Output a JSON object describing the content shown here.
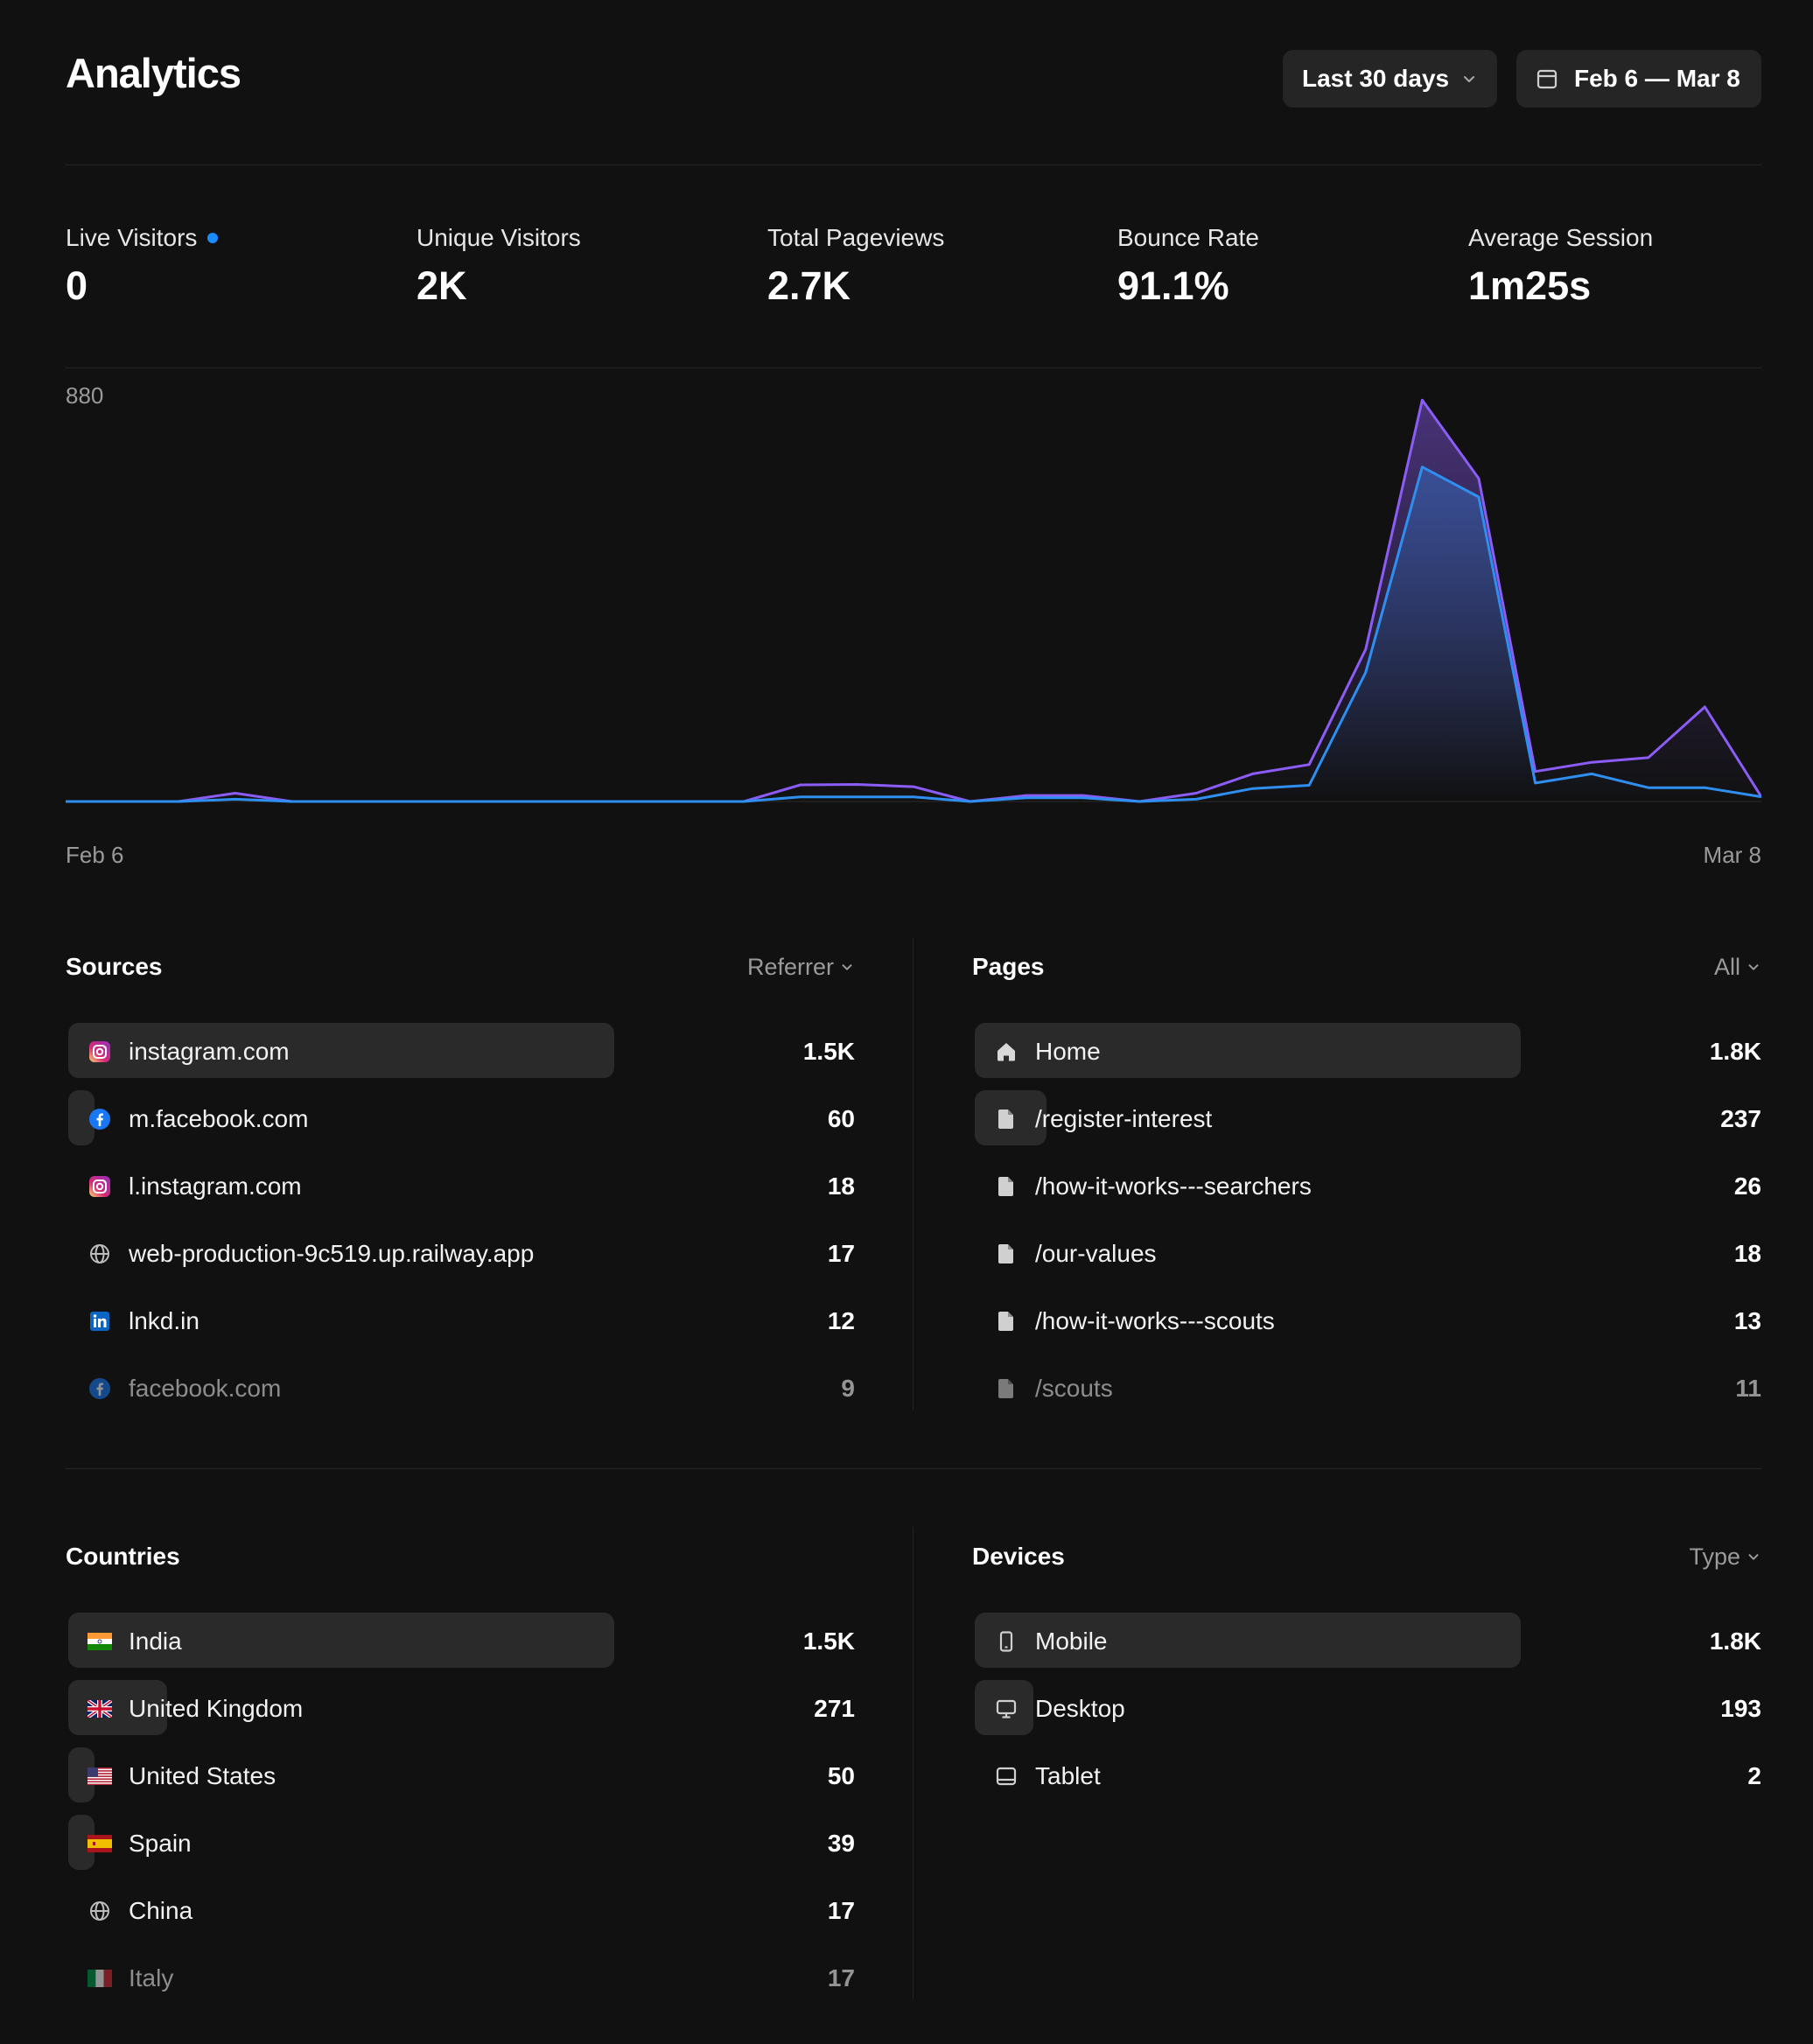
{
  "header": {
    "title": "Analytics",
    "range_label": "Last 30 days",
    "date_label": "Feb 6 — Mar 8"
  },
  "kpis": [
    {
      "label": "Live Visitors",
      "value": "0"
    },
    {
      "label": "Unique Visitors",
      "value": "2K"
    },
    {
      "label": "Total Pageviews",
      "value": "2.7K"
    },
    {
      "label": "Bounce Rate",
      "value": "91.1%"
    },
    {
      "label": "Average Session",
      "value": "1m25s"
    }
  ],
  "colors": {
    "accent_blue": "#1a8cff",
    "pageviews_line": "#8b5cf6",
    "visitors_line": "#2f8ff0",
    "background": "#111111"
  },
  "chart_data": {
    "type": "area",
    "ymax_label": "880",
    "ylim": [
      0,
      880
    ],
    "x_start_label": "Feb 6",
    "x_end_label": "Mar 8",
    "x": [
      "Feb 6",
      "Feb 7",
      "Feb 8",
      "Feb 9",
      "Feb 10",
      "Feb 11",
      "Feb 12",
      "Feb 13",
      "Feb 14",
      "Feb 15",
      "Feb 16",
      "Feb 17",
      "Feb 18",
      "Feb 19",
      "Feb 20",
      "Feb 21",
      "Feb 22",
      "Feb 23",
      "Feb 24",
      "Feb 25",
      "Feb 26",
      "Feb 27",
      "Feb 28",
      "Mar 1",
      "Mar 2",
      "Mar 3",
      "Mar 4",
      "Mar 5",
      "Mar 6",
      "Mar 7",
      "Mar 8"
    ],
    "series": [
      {
        "values": [
          0,
          0,
          0,
          18,
          0,
          0,
          0,
          0,
          0,
          0,
          0,
          0,
          0,
          36,
          37,
          32,
          0,
          13,
          13,
          0,
          18,
          60,
          80,
          330,
          870,
          700,
          65,
          85,
          95,
          205,
          10
        ]
      },
      {
        "values": [
          0,
          0,
          0,
          5,
          0,
          0,
          0,
          0,
          0,
          0,
          0,
          0,
          0,
          10,
          10,
          10,
          0,
          8,
          8,
          0,
          5,
          28,
          35,
          280,
          725,
          660,
          40,
          60,
          30,
          30,
          10
        ]
      }
    ]
  },
  "sources": {
    "title": "Sources",
    "filter": "Referrer",
    "rows": [
      {
        "label": "instagram.com",
        "value": "1.5K",
        "share": 0.8,
        "icon": "instagram-icon"
      },
      {
        "label": "m.facebook.com",
        "value": "60",
        "share": 0.032,
        "icon": "facebook-icon"
      },
      {
        "label": "l.instagram.com",
        "value": "18",
        "share": 0.0,
        "icon": "instagram-icon"
      },
      {
        "label": "web-production-9c519.up.railway.app",
        "value": "17",
        "share": 0.0,
        "icon": "globe-icon"
      },
      {
        "label": "lnkd.in",
        "value": "12",
        "share": 0.0,
        "icon": "linkedin-icon"
      },
      {
        "label": "facebook.com",
        "value": "9",
        "share": 0.0,
        "icon": "facebook-icon"
      }
    ]
  },
  "pages": {
    "title": "Pages",
    "filter": "All",
    "rows": [
      {
        "label": "Home",
        "value": "1.8K",
        "share": 0.8,
        "icon": "home-icon"
      },
      {
        "label": "/register-interest",
        "value": "237",
        "share": 0.105,
        "icon": "page-icon"
      },
      {
        "label": "/how-it-works---searchers",
        "value": "26",
        "share": 0.0,
        "icon": "page-icon"
      },
      {
        "label": "/our-values",
        "value": "18",
        "share": 0.0,
        "icon": "page-icon"
      },
      {
        "label": "/how-it-works---scouts",
        "value": "13",
        "share": 0.0,
        "icon": "page-icon"
      },
      {
        "label": "/scouts",
        "value": "11",
        "share": 0.0,
        "icon": "page-icon"
      }
    ]
  },
  "countries": {
    "title": "Countries",
    "rows": [
      {
        "label": "India",
        "value": "1.5K",
        "share": 0.8,
        "icon": "flag-india-icon"
      },
      {
        "label": "United Kingdom",
        "value": "271",
        "share": 0.145,
        "icon": "flag-uk-icon"
      },
      {
        "label": "United States",
        "value": "50",
        "share": 0.027,
        "icon": "flag-us-icon"
      },
      {
        "label": "Spain",
        "value": "39",
        "share": 0.021,
        "icon": "flag-spain-icon"
      },
      {
        "label": "China",
        "value": "17",
        "share": 0.0,
        "icon": "globe-icon"
      },
      {
        "label": "Italy",
        "value": "17",
        "share": 0.0,
        "icon": "flag-italy-icon"
      }
    ]
  },
  "devices": {
    "title": "Devices",
    "filter": "Type",
    "rows": [
      {
        "label": "Mobile",
        "value": "1.8K",
        "share": 0.8,
        "icon": "mobile-icon"
      },
      {
        "label": "Desktop",
        "value": "193",
        "share": 0.086,
        "icon": "desktop-icon"
      },
      {
        "label": "Tablet",
        "value": "2",
        "share": 0.0,
        "icon": "tablet-icon"
      }
    ]
  }
}
